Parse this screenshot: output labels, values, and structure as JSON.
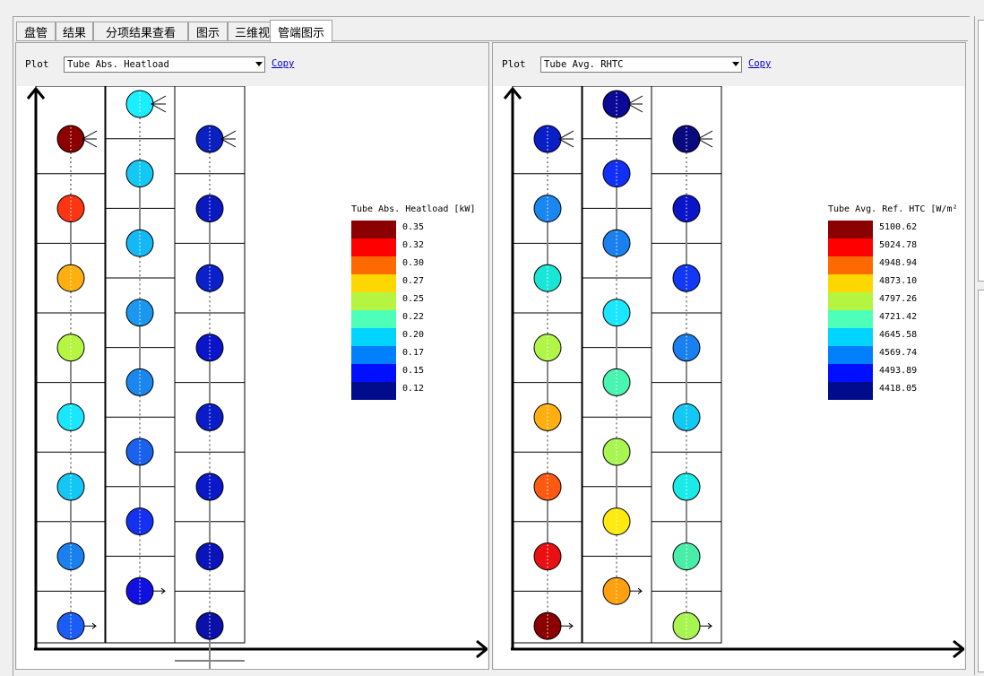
{
  "tabs": [
    {
      "label": "盘管",
      "active": false
    },
    {
      "label": "结果",
      "active": false
    },
    {
      "label": "分项结果查看",
      "active": false
    },
    {
      "label": "图示",
      "active": false
    },
    {
      "label": "三维视图",
      "active": false
    },
    {
      "label": "管端图示",
      "active": true
    }
  ],
  "plots": [
    {
      "plot_label": "Plot",
      "selected": "Tube Abs. Heatload",
      "copy_label": "Copy",
      "legend_title": "Tube Abs. Heatload [kW]",
      "legend_values": [
        "0.35",
        "0.32",
        "0.30",
        "0.27",
        "0.25",
        "0.22",
        "0.20",
        "0.17",
        "0.15",
        "0.12"
      ],
      "columns": [
        [
          "#8b0000",
          "#ff3412",
          "#ffb010",
          "#b6f542",
          "#1ae6ff",
          "#14c6f5",
          "#1a80ef",
          "#1a5cf5"
        ],
        [
          "#1aefff",
          "#14c8f5",
          "#14b8f5",
          "#1a98f0",
          "#1a86ef",
          "#1a62ee",
          "#1430f0",
          "#1010e0"
        ],
        [
          "#0a20c0",
          "#0a18c0",
          "#0a20c8",
          "#0a14c8",
          "#0a1cc8",
          "#0a18c8",
          "#0a14b8",
          "#0a10a8",
          "#0a0a88"
        ]
      ]
    },
    {
      "plot_label": "Plot",
      "selected": "Tube Avg. RHTC",
      "copy_label": "Copy",
      "legend_title": "Tube Avg. Ref. HTC [W/m²",
      "legend_values": [
        "5100.62",
        "5024.78",
        "4948.94",
        "4873.10",
        "4797.26",
        "4721.42",
        "4645.58",
        "4569.74",
        "4493.89",
        "4418.05"
      ],
      "columns": [
        [
          "#0a1ec8",
          "#1a86ef",
          "#1ae6d8",
          "#b0f548",
          "#ffb010",
          "#ff5a12",
          "#e81010",
          "#8b0000"
        ],
        [
          "#0a0a96",
          "#1030f5",
          "#1a80ef",
          "#1ae6ff",
          "#48f5b0",
          "#a8f552",
          "#ffea10",
          "#ffa010"
        ],
        [
          "#0a0a80",
          "#0a14c8",
          "#1238f5",
          "#1a80ef",
          "#12c8f5",
          "#1aeae8",
          "#48eea8",
          "#a8f552"
        ]
      ]
    }
  ],
  "legend_colors": [
    "#8b0000",
    "#ff0000",
    "#ff6a00",
    "#ffd700",
    "#b5f542",
    "#4dffb8",
    "#00d4ff",
    "#0080ff",
    "#0010ff",
    "#000c8c"
  ]
}
